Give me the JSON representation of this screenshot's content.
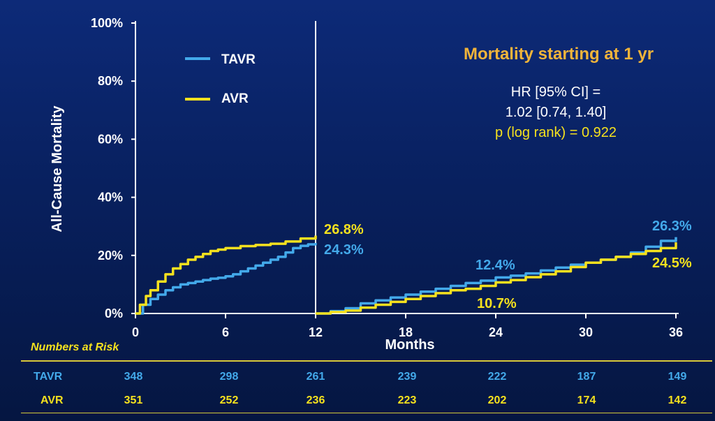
{
  "chart_data": {
    "type": "line",
    "ylabel": "All-Cause Mortality",
    "xlabel": "Months",
    "yticks": [
      "0%",
      "20%",
      "40%",
      "60%",
      "80%",
      "100%"
    ],
    "xticks": [
      "0",
      "6",
      "12",
      "18",
      "24",
      "30",
      "36"
    ],
    "ylim": [
      0,
      100
    ],
    "xlim": [
      0,
      36
    ],
    "split_at_month": 12,
    "legend_position": "top-left",
    "series": [
      {
        "name": "TAVR",
        "color": "#43a9ea",
        "segment1": [
          [
            0,
            0
          ],
          [
            0.5,
            3
          ],
          [
            1,
            5
          ],
          [
            1.5,
            6.5
          ],
          [
            2,
            8
          ],
          [
            2.5,
            9
          ],
          [
            3,
            10
          ],
          [
            3.5,
            10.5
          ],
          [
            4,
            11
          ],
          [
            4.5,
            11.5
          ],
          [
            5,
            12
          ],
          [
            5.5,
            12.3
          ],
          [
            6,
            12.8
          ],
          [
            6.5,
            13.5
          ],
          [
            7,
            14.5
          ],
          [
            7.5,
            15.5
          ],
          [
            8,
            16.5
          ],
          [
            8.5,
            17.5
          ],
          [
            9,
            18.5
          ],
          [
            9.5,
            19.5
          ],
          [
            10,
            21
          ],
          [
            10.5,
            22.5
          ],
          [
            11,
            23.3
          ],
          [
            11.5,
            23.8
          ],
          [
            12,
            24.3
          ]
        ],
        "segment2": [
          [
            12,
            0
          ],
          [
            13,
            0.8
          ],
          [
            14,
            1.8
          ],
          [
            15,
            3.5
          ],
          [
            16,
            4.5
          ],
          [
            17,
            5.5
          ],
          [
            18,
            6.5
          ],
          [
            19,
            7.5
          ],
          [
            20,
            8.5
          ],
          [
            21,
            9.5
          ],
          [
            22,
            10.5
          ],
          [
            23,
            11.3
          ],
          [
            24,
            12.4
          ],
          [
            25,
            13
          ],
          [
            26,
            13.8
          ],
          [
            27,
            14.8
          ],
          [
            28,
            15.8
          ],
          [
            29,
            16.8
          ],
          [
            30,
            17.5
          ],
          [
            31,
            18.5
          ],
          [
            32,
            19.5
          ],
          [
            33,
            21
          ],
          [
            34,
            23
          ],
          [
            35,
            25
          ],
          [
            36,
            26.3
          ]
        ],
        "end_label_1": "24.3%",
        "end_label_2": "26.3%",
        "mid_label": "12.4%"
      },
      {
        "name": "AVR",
        "color": "#f5e11e",
        "segment1": [
          [
            0,
            0
          ],
          [
            0.3,
            3
          ],
          [
            0.7,
            6
          ],
          [
            1,
            8
          ],
          [
            1.5,
            11
          ],
          [
            2,
            13.5
          ],
          [
            2.5,
            15.5
          ],
          [
            3,
            17
          ],
          [
            3.5,
            18.5
          ],
          [
            4,
            19.5
          ],
          [
            4.5,
            20.5
          ],
          [
            5,
            21.5
          ],
          [
            5.5,
            22
          ],
          [
            6,
            22.5
          ],
          [
            7,
            23.2
          ],
          [
            8,
            23.6
          ],
          [
            9,
            24
          ],
          [
            10,
            24.8
          ],
          [
            11,
            25.8
          ],
          [
            12,
            26.8
          ]
        ],
        "segment2": [
          [
            12,
            0
          ],
          [
            13,
            0.5
          ],
          [
            14,
            1
          ],
          [
            15,
            2
          ],
          [
            16,
            3
          ],
          [
            17,
            4
          ],
          [
            18,
            5
          ],
          [
            19,
            6
          ],
          [
            20,
            7
          ],
          [
            21,
            8
          ],
          [
            22,
            8.5
          ],
          [
            23,
            9.5
          ],
          [
            24,
            10.7
          ],
          [
            25,
            11.5
          ],
          [
            26,
            12.5
          ],
          [
            27,
            13.5
          ],
          [
            28,
            14.5
          ],
          [
            29,
            16
          ],
          [
            30,
            17.5
          ],
          [
            31,
            18.5
          ],
          [
            32,
            19.5
          ],
          [
            33,
            20.5
          ],
          [
            34,
            21.5
          ],
          [
            35,
            22.5
          ],
          [
            36,
            24.5
          ]
        ],
        "end_label_1": "26.8%",
        "end_label_2": "24.5%",
        "mid_label": "10.7%"
      }
    ]
  },
  "annotation": {
    "title": "Mortality starting at 1 yr",
    "hr_line1": "HR [95% CI] =",
    "hr_line2": "1.02 [0.74, 1.40]",
    "p_line": "p (log rank) = 0.922"
  },
  "risk_table": {
    "title": "Numbers at Risk",
    "rows": [
      {
        "name": "TAVR",
        "values": [
          "348",
          "298",
          "261",
          "239",
          "222",
          "187",
          "149"
        ]
      },
      {
        "name": "AVR",
        "values": [
          "351",
          "252",
          "236",
          "223",
          "202",
          "174",
          "142"
        ]
      }
    ]
  },
  "colors": {
    "tavr": "#43a9ea",
    "avr": "#f5e11e",
    "title_orange": "#f1b43a",
    "axis": "#ffffff"
  }
}
